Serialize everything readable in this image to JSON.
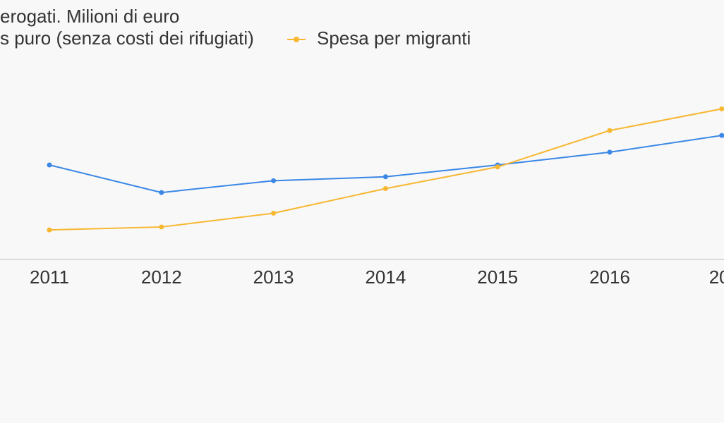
{
  "chart_data": {
    "type": "line",
    "title_lines": [
      "erogati. Milioni di euro",
      "s puro (senza costi dei rifugiati)"
    ],
    "x": [
      "2011",
      "2012",
      "2013",
      "2014",
      "2015",
      "2016",
      "20."
    ],
    "series": [
      {
        "name": "s puro (senza costi dei rifugiati)",
        "color": "#3a87e6",
        "values": [
          1000,
          860,
          920,
          940,
          1000,
          1065,
          1150
        ]
      },
      {
        "name": "Spesa per migranti",
        "color": "#f7b731",
        "values": [
          670,
          685,
          755,
          880,
          990,
          1175,
          1285
        ]
      }
    ],
    "ylim": [
      520,
      1480
    ],
    "grid": false,
    "legend_position": "top",
    "axis_color": "#d9d9d9"
  }
}
